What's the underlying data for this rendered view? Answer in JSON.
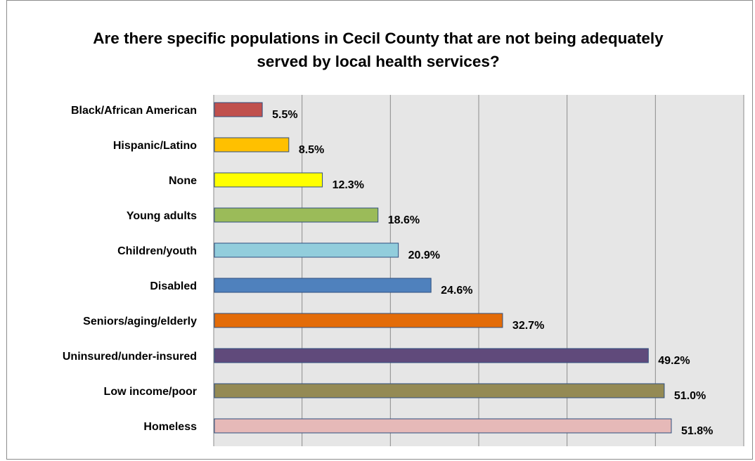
{
  "chart_data": {
    "type": "bar",
    "orientation": "horizontal",
    "title": "Are there specific populations in Cecil County that are not being adequately served by local health services?",
    "xlabel": "",
    "ylabel": "",
    "xlim": [
      0,
      60
    ],
    "grid": "vertical",
    "legend": "none",
    "categories": [
      "Black/African American",
      "Hispanic/Latino",
      "None",
      "Young adults",
      "Children/youth",
      "Disabled",
      "Seniors/aging/elderly",
      "Uninsured/under-insured",
      "Low income/poor",
      "Homeless"
    ],
    "values": [
      5.5,
      8.5,
      12.3,
      18.6,
      20.9,
      24.6,
      32.7,
      49.2,
      51.0,
      51.8
    ],
    "value_labels": [
      "5.5%",
      "8.5%",
      "12.3%",
      "18.6%",
      "20.9%",
      "24.6%",
      "32.7%",
      "49.2%",
      "51.0%",
      "51.8%"
    ],
    "colors": [
      "#C0504D",
      "#FFC000",
      "#FFFF00",
      "#9BBB59",
      "#92CDDC",
      "#4F81BD",
      "#E36C09",
      "#604A7B",
      "#948A54",
      "#E6B9B8"
    ],
    "plot_background": "#e6e6e6",
    "bar_border": "#2f4f7f"
  }
}
